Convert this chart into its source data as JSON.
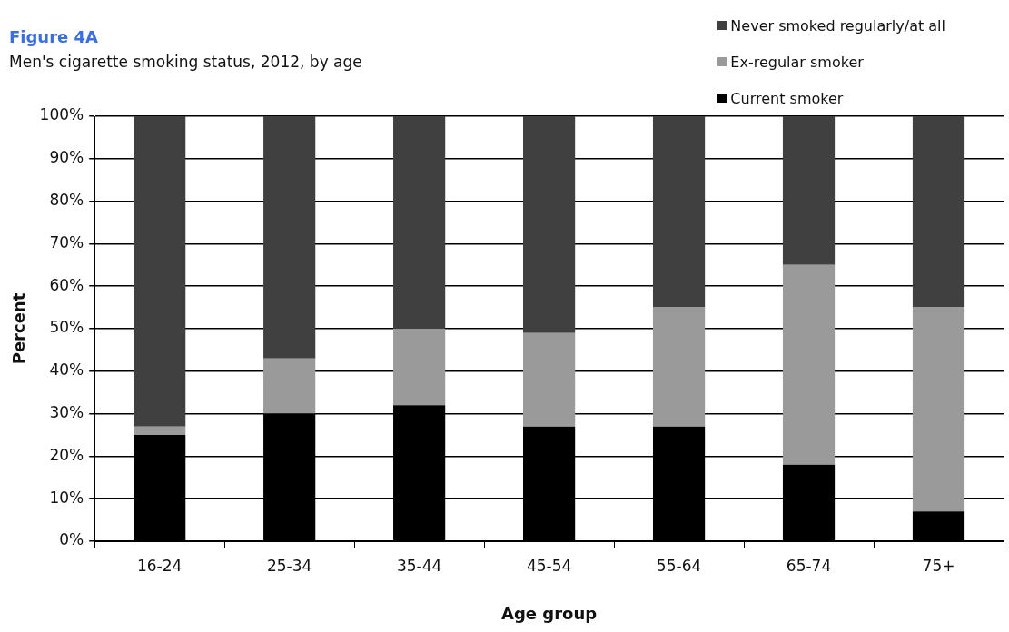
{
  "chart_data": {
    "type": "bar",
    "title": "Figure 4A",
    "subtitle": "Men's cigarette smoking status, 2012, by age",
    "xlabel": "Age group",
    "ylabel": "Percent",
    "categories": [
      "16-24",
      "25-34",
      "35-44",
      "45-54",
      "55-64",
      "65-74",
      "75+"
    ],
    "stacked": true,
    "series": [
      {
        "name": "Current smoker",
        "color": "#000000",
        "values": [
          25,
          30,
          32,
          27,
          27,
          18,
          7
        ]
      },
      {
        "name": "Ex-regular smoker",
        "color": "#9a9a9a",
        "values": [
          2,
          13,
          18,
          22,
          28,
          47,
          48
        ]
      },
      {
        "name": "Never smoked regularly/at all",
        "color": "#404040",
        "values": [
          73,
          57,
          50,
          51,
          45,
          35,
          45
        ]
      }
    ],
    "ylim": [
      0,
      100
    ],
    "yticks": [
      {
        "value": 0,
        "label": "0%"
      },
      {
        "value": 10,
        "label": "10%"
      },
      {
        "value": 20,
        "label": "20%"
      },
      {
        "value": 30,
        "label": "30%"
      },
      {
        "value": 40,
        "label": "40%"
      },
      {
        "value": 50,
        "label": "50%"
      },
      {
        "value": 60,
        "label": "60%"
      },
      {
        "value": 70,
        "label": "70%"
      },
      {
        "value": 80,
        "label": "80%"
      },
      {
        "value": 90,
        "label": "90%"
      },
      {
        "value": 100,
        "label": "100%"
      }
    ],
    "grid": "y",
    "legend": "top right"
  }
}
